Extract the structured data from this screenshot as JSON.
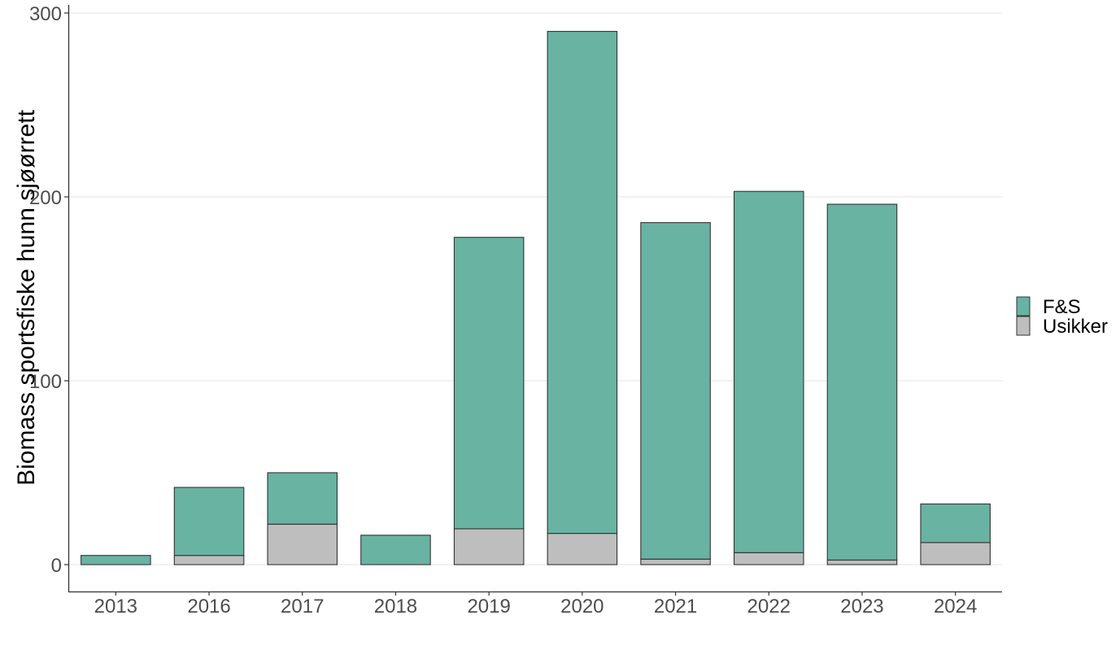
{
  "chart_data": {
    "type": "bar",
    "stacked": true,
    "title": "",
    "xlabel": "",
    "ylabel": "Biomass sportsfiske hunn sjøørrett",
    "ylim": [
      -14,
      304
    ],
    "yticks": [
      0,
      100,
      200,
      300
    ],
    "grid": "horizontal major",
    "legend_position": "right",
    "categories": [
      "2013",
      "2016",
      "2017",
      "2018",
      "2019",
      "2020",
      "2021",
      "2022",
      "2023",
      "2024"
    ],
    "series": [
      {
        "name": "Usikker",
        "color": "#bebebe",
        "values": [
          0,
          5,
          22,
          0,
          19.5,
          17,
          3,
          6.5,
          2.5,
          12
        ]
      },
      {
        "name": "F&S",
        "color": "#69b3a2",
        "values": [
          5,
          37,
          28,
          16,
          158.5,
          273,
          183,
          196.5,
          193.5,
          21
        ]
      }
    ],
    "totals": [
      5,
      42,
      50,
      16,
      178,
      290,
      186,
      203,
      196,
      33
    ]
  },
  "legend": {
    "items": [
      {
        "label": "F&S",
        "color": "#69b3a2"
      },
      {
        "label": "Usikker",
        "color": "#bebebe"
      }
    ]
  },
  "axis": {
    "y_title": "Biomass sportsfiske hunn sjøørrett",
    "y_ticks": [
      "0",
      "100",
      "200",
      "300"
    ],
    "x_ticks": [
      "2013",
      "2016",
      "2017",
      "2018",
      "2019",
      "2020",
      "2021",
      "2022",
      "2023",
      "2024"
    ]
  }
}
